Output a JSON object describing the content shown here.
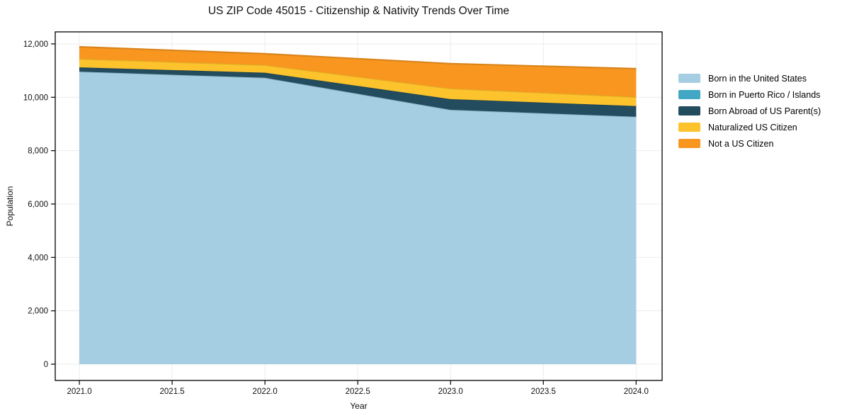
{
  "title": "US ZIP Code 45015 - Citizenship & Nativity Trends Over Time",
  "chart_data": {
    "type": "area",
    "stacked": true,
    "title": "US ZIP Code 45015 - Citizenship & Nativity Trends Over Time",
    "xlabel": "Year",
    "ylabel": "Population",
    "x": [
      2021,
      2022,
      2023,
      2024
    ],
    "series": [
      {
        "name": "Born in the United States",
        "color": "#a6cee3",
        "values": [
          10960,
          10730,
          9530,
          9270
        ]
      },
      {
        "name": "Born in Puerto Rico / Islands",
        "color": "#41a7c5",
        "values": [
          0,
          0,
          0,
          0
        ]
      },
      {
        "name": "Born Abroad of US Parent(s)",
        "color": "#234d5e",
        "values": [
          160,
          190,
          400,
          400
        ]
      },
      {
        "name": "Naturalized US Citizen",
        "color": "#fdc32c",
        "values": [
          320,
          290,
          400,
          340
        ]
      },
      {
        "name": "Not a US Citizen",
        "color": "#f8961f",
        "values": [
          450,
          420,
          930,
          1060
        ]
      }
    ],
    "totals": [
      11890,
      11630,
      11260,
      11070
    ],
    "x_ticks": [
      2021.0,
      2021.5,
      2022.0,
      2022.5,
      2023.0,
      2023.5,
      2024.0
    ],
    "x_tick_labels": [
      "2021.0",
      "2021.5",
      "2022.0",
      "2022.5",
      "2023.0",
      "2023.5",
      "2024.0"
    ],
    "y_ticks": [
      0,
      2000,
      4000,
      6000,
      8000,
      10000,
      12000
    ],
    "y_tick_labels": [
      "0",
      "2,000",
      "4,000",
      "6,000",
      "8,000",
      "10,000",
      "12,000"
    ],
    "xlim": [
      2020.87,
      2024.14
    ],
    "ylim": [
      -610,
      12450
    ],
    "grid": true,
    "grid_color": "#ececec",
    "frame_color": "#000000",
    "legend_position": "right"
  }
}
